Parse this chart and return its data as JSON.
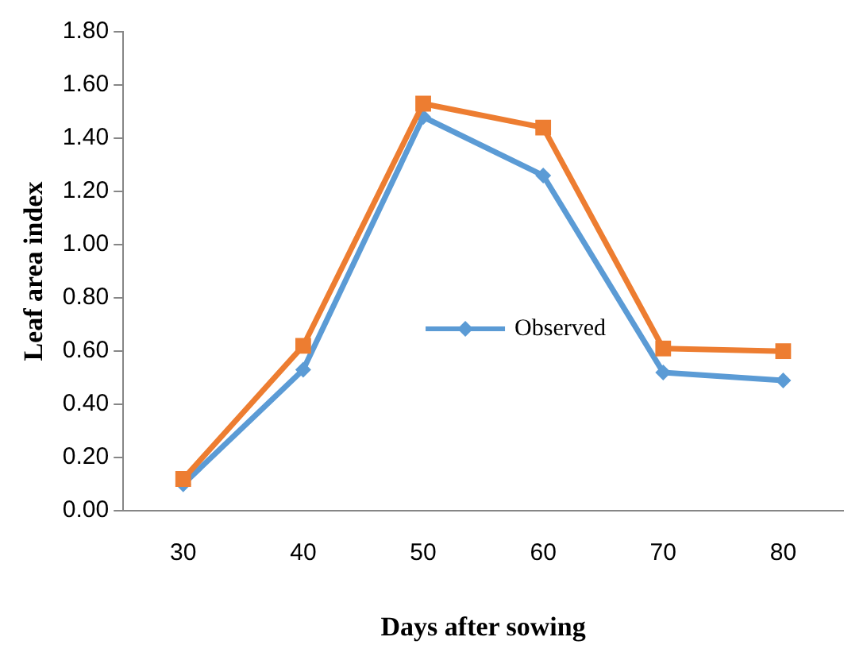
{
  "chart_data": {
    "type": "line",
    "xlabel": "Days after sowing",
    "ylabel": "Leaf area index",
    "categories": [
      "30",
      "40",
      "50",
      "60",
      "70",
      "80"
    ],
    "series": [
      {
        "name": "Observed",
        "color": "#5b9bd5",
        "marker": "diamond",
        "values": [
          0.1,
          0.53,
          1.48,
          1.26,
          0.52,
          0.49
        ]
      },
      {
        "color": "#ed7d31",
        "marker": "square",
        "values": [
          0.12,
          0.62,
          1.53,
          1.44,
          0.61,
          0.6
        ]
      }
    ],
    "ylim": [
      0,
      1.8
    ],
    "yticks": [
      {
        "value": 0,
        "label": "0.00"
      },
      {
        "value": 0.2,
        "label": "0.20"
      },
      {
        "value": 0.4,
        "label": "0.40"
      },
      {
        "value": 0.6,
        "label": "0.60"
      },
      {
        "value": 0.8,
        "label": "0.80"
      },
      {
        "value": 1,
        "label": "1.00"
      },
      {
        "value": 1.2,
        "label": "1.20"
      },
      {
        "value": 1.4,
        "label": "1.40"
      },
      {
        "value": 1.6,
        "label": "1.60"
      },
      {
        "value": 1.8,
        "label": "1.80"
      }
    ],
    "grid": false,
    "legend": "center"
  }
}
